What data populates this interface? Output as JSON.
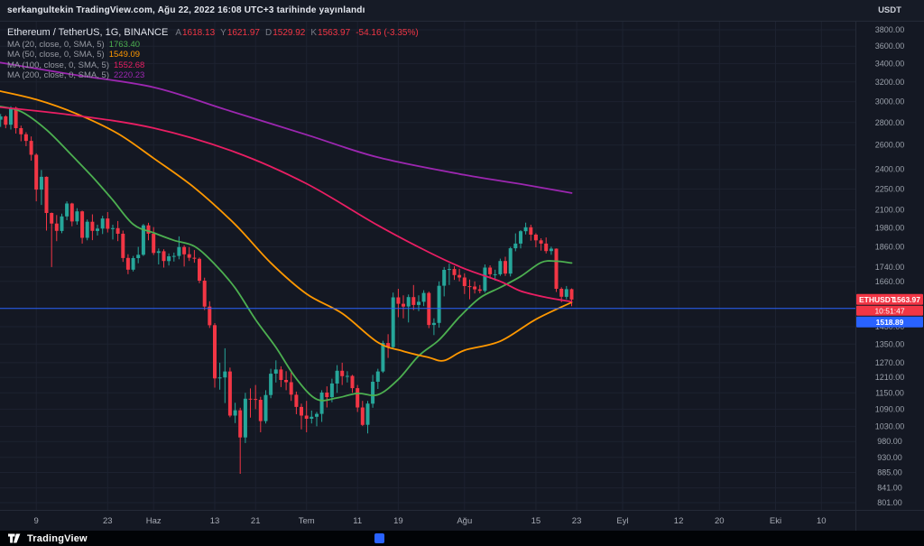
{
  "header": {
    "published_text": "serkangultekin TradingView.com, Ağu 22, 2022 16:08 UTC+3 tarihinde yayınlandı"
  },
  "legend": {
    "symbol_title": "Ethereum / TetherUS, 1G, BINANCE",
    "ohlc": {
      "open_label": "A",
      "open": "1618.13",
      "high_label": "Y",
      "high": "1621.97",
      "low_label": "D",
      "low": "1529.92",
      "close_label": "K",
      "close": "1563.97",
      "change": "-54.16 (-3.35%)",
      "color": "#f23645"
    },
    "indicators": [
      {
        "label": "MA (20, close, 0, SMA, 5)",
        "value": "1763.40",
        "color": "#4caf50"
      },
      {
        "label": "MA (50, close, 0, SMA, 5)",
        "value": "1549.09",
        "color": "#ff9800"
      },
      {
        "label": "MA (100, close, 0, SMA, 5)",
        "value": "1552.68",
        "color": "#e91e63"
      },
      {
        "label": "MA (200, close, 0, SMA, 5)",
        "value": "2220.23",
        "color": "#9c27b0"
      }
    ]
  },
  "price_axis": {
    "unit": "USDT",
    "symbol_badge": {
      "symbol": "ETHUSDT",
      "price": "1563.97",
      "countdown": "10:51:47",
      "color": "#f23645"
    },
    "line_badge": {
      "price": "1518.89",
      "color": "#2962ff"
    }
  },
  "footer": {
    "brand": "TradingView"
  },
  "chart_data": {
    "type": "candlestick",
    "title": "Ethereum / TetherUS, 1G, BINANCE",
    "scale": "log",
    "ylim": [
      782.3,
      3903
    ],
    "up_color": "#26a69a",
    "down_color": "#f23645",
    "last_price": 1563.97,
    "horizontal_line": {
      "price": 1518.89,
      "color": "#2962ff"
    },
    "price_ticks": [
      3800,
      3600,
      3400,
      3200,
      3000,
      2800,
      2600,
      2400,
      2250,
      2100,
      1980,
      1860,
      1740,
      1660,
      1430,
      1350,
      1270,
      1210,
      1150,
      1090,
      1030,
      980,
      930,
      885,
      841,
      801
    ],
    "time_labels": [
      {
        "text": "9",
        "day": 8
      },
      {
        "text": "23",
        "day": 22
      },
      {
        "text": "Haz",
        "day": 31
      },
      {
        "text": "13",
        "day": 43
      },
      {
        "text": "21",
        "day": 51
      },
      {
        "text": "Tem",
        "day": 61
      },
      {
        "text": "11",
        "day": 71
      },
      {
        "text": "19",
        "day": 79
      },
      {
        "text": "Ağu",
        "day": 92
      },
      {
        "text": "15",
        "day": 106
      },
      {
        "text": "23",
        "day": 114
      },
      {
        "text": "Eyl",
        "day": 123
      },
      {
        "text": "12",
        "day": 134
      },
      {
        "text": "20",
        "day": 142
      },
      {
        "text": "Eki",
        "day": 153
      },
      {
        "text": "10",
        "day": 162
      }
    ],
    "candles": [
      [
        2730,
        2860,
        2706,
        2827
      ],
      [
        2827,
        2880,
        2760,
        2857
      ],
      [
        2857,
        2868,
        2748,
        2780
      ],
      [
        2780,
        2955,
        2737,
        2940
      ],
      [
        2940,
        2950,
        2700,
        2749
      ],
      [
        2749,
        2772,
        2633,
        2694
      ],
      [
        2694,
        2712,
        2590,
        2636
      ],
      [
        2636,
        2675,
        2470,
        2518
      ],
      [
        2518,
        2530,
        2160,
        2245
      ],
      [
        2245,
        2395,
        2135,
        2342
      ],
      [
        2342,
        2345,
        1962,
        2079
      ],
      [
        2079,
        2082,
        1740,
        2008
      ],
      [
        2008,
        2065,
        1895,
        1960
      ],
      [
        1960,
        2075,
        1945,
        2056
      ],
      [
        2056,
        2160,
        2030,
        2145
      ],
      [
        2145,
        2150,
        1990,
        2022
      ],
      [
        2022,
        2112,
        2000,
        2090
      ],
      [
        2090,
        2095,
        1880,
        1916
      ],
      [
        1916,
        2035,
        1900,
        2020
      ],
      [
        2020,
        2070,
        1901,
        1960
      ],
      [
        1960,
        2000,
        1930,
        1975
      ],
      [
        1975,
        2060,
        1940,
        2042
      ],
      [
        2042,
        2085,
        1950,
        1974
      ],
      [
        1974,
        2000,
        1905,
        1978
      ],
      [
        1978,
        2025,
        1895,
        1942
      ],
      [
        1942,
        1962,
        1770,
        1793
      ],
      [
        1793,
        1815,
        1700,
        1725
      ],
      [
        1725,
        1805,
        1715,
        1792
      ],
      [
        1792,
        1860,
        1762,
        1812
      ],
      [
        1812,
        2005,
        1805,
        1996
      ],
      [
        1996,
        2013,
        1900,
        1942
      ],
      [
        1942,
        1985,
        1810,
        1823
      ],
      [
        1823,
        1850,
        1755,
        1833
      ],
      [
        1833,
        1845,
        1737,
        1775
      ],
      [
        1775,
        1820,
        1749,
        1803
      ],
      [
        1803,
        1825,
        1772,
        1805
      ],
      [
        1805,
        1925,
        1785,
        1859
      ],
      [
        1859,
        1870,
        1743,
        1815
      ],
      [
        1815,
        1858,
        1775,
        1794
      ],
      [
        1794,
        1840,
        1765,
        1788
      ],
      [
        1788,
        1795,
        1650,
        1664
      ],
      [
        1664,
        1680,
        1510,
        1528
      ],
      [
        1528,
        1555,
        1424,
        1437
      ],
      [
        1437,
        1447,
        1170,
        1206
      ],
      [
        1206,
        1270,
        1162,
        1210
      ],
      [
        1210,
        1332,
        1112,
        1234
      ],
      [
        1234,
        1250,
        1061,
        1067
      ],
      [
        1067,
        1113,
        1041,
        1086
      ],
      [
        1086,
        1095,
        881,
        993
      ],
      [
        993,
        1150,
        975,
        1128
      ],
      [
        1128,
        1167,
        1060,
        1127
      ],
      [
        1127,
        1180,
        1090,
        1124
      ],
      [
        1124,
        1135,
        1010,
        1048
      ],
      [
        1048,
        1160,
        1040,
        1142
      ],
      [
        1142,
        1245,
        1130,
        1225
      ],
      [
        1225,
        1280,
        1190,
        1242
      ],
      [
        1242,
        1255,
        1172,
        1200
      ],
      [
        1200,
        1235,
        1160,
        1191
      ],
      [
        1191,
        1230,
        1120,
        1143
      ],
      [
        1143,
        1155,
        1072,
        1098
      ],
      [
        1098,
        1110,
        1020,
        1067
      ],
      [
        1067,
        1120,
        1010,
        1056
      ],
      [
        1056,
        1085,
        1040,
        1063
      ],
      [
        1063,
        1080,
        1030,
        1073
      ],
      [
        1073,
        1160,
        1045,
        1151
      ],
      [
        1151,
        1175,
        1096,
        1134
      ],
      [
        1134,
        1205,
        1115,
        1186
      ],
      [
        1186,
        1260,
        1150,
        1237
      ],
      [
        1237,
        1270,
        1180,
        1215
      ],
      [
        1215,
        1235,
        1190,
        1216
      ],
      [
        1216,
        1220,
        1150,
        1168
      ],
      [
        1168,
        1180,
        1080,
        1096
      ],
      [
        1096,
        1120,
        1031,
        1035
      ],
      [
        1035,
        1120,
        1006,
        1110
      ],
      [
        1110,
        1220,
        1095,
        1193
      ],
      [
        1193,
        1245,
        1165,
        1234
      ],
      [
        1234,
        1365,
        1228,
        1355
      ],
      [
        1355,
        1395,
        1290,
        1337
      ],
      [
        1337,
        1600,
        1330,
        1575
      ],
      [
        1575,
        1620,
        1475,
        1542
      ],
      [
        1542,
        1585,
        1470,
        1528
      ],
      [
        1528,
        1590,
        1450,
        1576
      ],
      [
        1576,
        1640,
        1510,
        1536
      ],
      [
        1536,
        1585,
        1505,
        1552
      ],
      [
        1552,
        1612,
        1530,
        1598
      ],
      [
        1598,
        1605,
        1423,
        1438
      ],
      [
        1438,
        1470,
        1391,
        1448
      ],
      [
        1448,
        1660,
        1425,
        1636
      ],
      [
        1636,
        1740,
        1580,
        1724
      ],
      [
        1724,
        1760,
        1640,
        1729
      ],
      [
        1729,
        1745,
        1668,
        1695
      ],
      [
        1695,
        1730,
        1660,
        1681
      ],
      [
        1681,
        1705,
        1592,
        1634
      ],
      [
        1634,
        1670,
        1565,
        1632
      ],
      [
        1632,
        1660,
        1595,
        1617
      ],
      [
        1617,
        1640,
        1596,
        1609
      ],
      [
        1609,
        1755,
        1600,
        1737
      ],
      [
        1737,
        1750,
        1675,
        1699
      ],
      [
        1699,
        1725,
        1665,
        1699
      ],
      [
        1699,
        1789,
        1690,
        1775
      ],
      [
        1775,
        1800,
        1690,
        1703
      ],
      [
        1703,
        1860,
        1687,
        1851
      ],
      [
        1851,
        1944,
        1833,
        1880
      ],
      [
        1880,
        1965,
        1850,
        1958
      ],
      [
        1958,
        2014,
        1937,
        1984
      ],
      [
        1984,
        2000,
        1898,
        1936
      ],
      [
        1936,
        1945,
        1857,
        1900
      ],
      [
        1900,
        1913,
        1837,
        1880
      ],
      [
        1880,
        1918,
        1820,
        1834
      ],
      [
        1834,
        1861,
        1812,
        1849
      ],
      [
        1849,
        1850,
        1603,
        1620
      ],
      [
        1620,
        1628,
        1550,
        1578
      ],
      [
        1578,
        1635,
        1565,
        1618.13
      ],
      [
        1618.13,
        1621.97,
        1529.92,
        1563.97
      ]
    ],
    "ma_series": [
      {
        "period": 20,
        "color": "#4caf50",
        "points": [
          [
            0,
            2960
          ],
          [
            5,
            2903
          ],
          [
            10,
            2734
          ],
          [
            15,
            2512
          ],
          [
            19,
            2342
          ],
          [
            23,
            2170
          ],
          [
            27,
            2003
          ],
          [
            31,
            1948
          ],
          [
            35,
            1900
          ],
          [
            39,
            1863
          ],
          [
            43,
            1757
          ],
          [
            47,
            1624
          ],
          [
            51,
            1464
          ],
          [
            55,
            1336
          ],
          [
            59,
            1205
          ],
          [
            63,
            1126
          ],
          [
            67,
            1131
          ],
          [
            71,
            1148
          ],
          [
            75,
            1143
          ],
          [
            79,
            1202
          ],
          [
            83,
            1299
          ],
          [
            87,
            1369
          ],
          [
            91,
            1476
          ],
          [
            95,
            1572
          ],
          [
            99,
            1627
          ],
          [
            103,
            1687
          ],
          [
            107,
            1766
          ],
          [
            110,
            1774
          ],
          [
            113,
            1763.4
          ]
        ]
      },
      {
        "period": 50,
        "color": "#ff9800",
        "points": [
          [
            0,
            3115
          ],
          [
            8,
            3020
          ],
          [
            16,
            2880
          ],
          [
            24,
            2700
          ],
          [
            31,
            2490
          ],
          [
            39,
            2260
          ],
          [
            47,
            2002
          ],
          [
            54,
            1764
          ],
          [
            61,
            1593
          ],
          [
            68,
            1494
          ],
          [
            75,
            1358
          ],
          [
            80,
            1319
          ],
          [
            85,
            1292
          ],
          [
            88,
            1279
          ],
          [
            92,
            1323
          ],
          [
            99,
            1363
          ],
          [
            106,
            1465
          ],
          [
            113,
            1549.09
          ]
        ]
      },
      {
        "period": 100,
        "color": "#e91e63",
        "points": [
          [
            0,
            2950
          ],
          [
            15,
            2870
          ],
          [
            31,
            2750
          ],
          [
            47,
            2540
          ],
          [
            61,
            2290
          ],
          [
            75,
            1996
          ],
          [
            85,
            1827
          ],
          [
            92,
            1731
          ],
          [
            99,
            1660
          ],
          [
            103,
            1608
          ],
          [
            108,
            1575
          ],
          [
            113,
            1552.68
          ]
        ]
      },
      {
        "period": 200,
        "color": "#9c27b0",
        "points": [
          [
            0,
            3420
          ],
          [
            15,
            3280
          ],
          [
            31,
            3145
          ],
          [
            45,
            2924
          ],
          [
            61,
            2690
          ],
          [
            75,
            2497
          ],
          [
            92,
            2357
          ],
          [
            103,
            2287
          ],
          [
            113,
            2220.23
          ]
        ]
      }
    ]
  }
}
